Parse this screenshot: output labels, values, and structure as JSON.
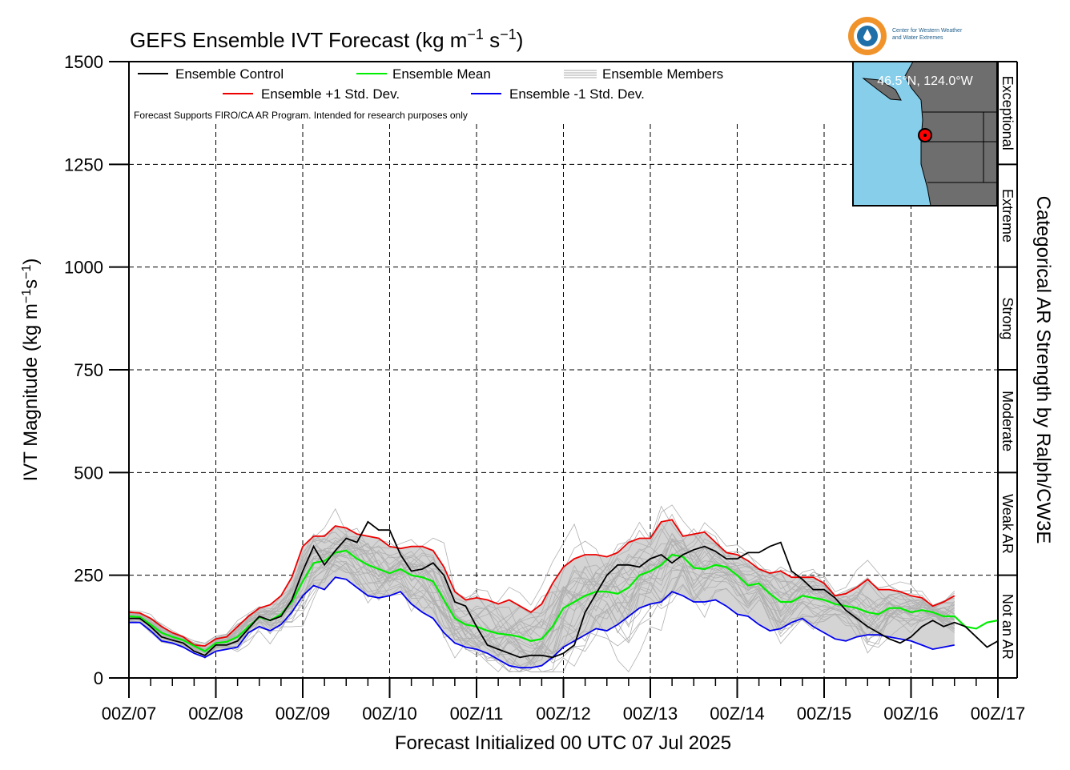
{
  "title": "GEFS Ensemble IVT Forecast (kg m",
  "title_sup1": "−1",
  "title_mid": " s",
  "title_sup2": "−1",
  "title_end": ")",
  "chart_data": {
    "type": "line",
    "title": "GEFS Ensemble IVT Forecast (kg m−1 s−1)",
    "xlabel": "Forecast Initialized 00 UTC 07 Jul 2025",
    "ylabel": "IVT Magnitude (kg m−1s−1)",
    "ylim": [
      0,
      1500
    ],
    "xlim": [
      0,
      10
    ],
    "y_ticks": [
      0,
      250,
      500,
      750,
      1000,
      1250,
      1500
    ],
    "x_ticks": [
      "00Z/07",
      "00Z/08",
      "00Z/09",
      "00Z/10",
      "00Z/11",
      "00Z/12",
      "00Z/13",
      "00Z/14",
      "00Z/15",
      "00Z/16",
      "00Z/17"
    ],
    "x_unit": "days since 00Z/07",
    "x_step": 0.125,
    "grid": true,
    "legend_position": "top-left",
    "series": [
      {
        "name": "Ensemble Control",
        "color": "#000000",
        "values": [
          145,
          145,
          125,
          100,
          92,
          85,
          65,
          55,
          80,
          80,
          90,
          120,
          150,
          140,
          150,
          190,
          260,
          320,
          275,
          310,
          340,
          330,
          380,
          360,
          360,
          300,
          260,
          265,
          280,
          250,
          185,
          175,
          125,
          80,
          70,
          60,
          50,
          55,
          55,
          50,
          60,
          80,
          160,
          205,
          250,
          275,
          275,
          270,
          290,
          300,
          280,
          300,
          312,
          320,
          308,
          290,
          290,
          305,
          305,
          320,
          330,
          260,
          240,
          215,
          215,
          195,
          165,
          145,
          125,
          110,
          95,
          85,
          100,
          125,
          140,
          125,
          135,
          125,
          100,
          75,
          90
        ]
      },
      {
        "name": "Ensemble Mean",
        "color": "#00ee00",
        "values": [
          150,
          148,
          130,
          110,
          100,
          92,
          78,
          65,
          85,
          88,
          100,
          125,
          148,
          140,
          155,
          185,
          235,
          280,
          285,
          305,
          310,
          290,
          275,
          265,
          255,
          265,
          250,
          245,
          235,
          190,
          145,
          130,
          125,
          115,
          108,
          105,
          100,
          90,
          95,
          125,
          170,
          185,
          200,
          210,
          210,
          205,
          220,
          250,
          260,
          275,
          300,
          295,
          268,
          265,
          275,
          270,
          250,
          225,
          230,
          205,
          185,
          185,
          200,
          195,
          190,
          180,
          175,
          170,
          160,
          155,
          170,
          170,
          160,
          165,
          160,
          150,
          150,
          125,
          120,
          135,
          140
        ]
      },
      {
        "name": "Ensemble +1 Std. Dev.",
        "color": "#ee0000",
        "values": [
          160,
          158,
          145,
          125,
          110,
          100,
          80,
          78,
          95,
          100,
          125,
          150,
          170,
          178,
          200,
          245,
          320,
          345,
          345,
          370,
          365,
          350,
          345,
          340,
          320,
          315,
          320,
          320,
          310,
          270,
          210,
          190,
          195,
          190,
          180,
          190,
          175,
          160,
          180,
          230,
          270,
          290,
          300,
          300,
          295,
          305,
          330,
          340,
          340,
          380,
          385,
          345,
          350,
          355,
          330,
          305,
          300,
          285,
          265,
          255,
          260,
          245,
          245,
          245,
          230,
          200,
          205,
          220,
          240,
          215,
          215,
          210,
          200,
          195,
          175,
          185,
          200
        ]
      },
      {
        "name": "Ensemble -1 Std. Dev.",
        "color": "#0000ee",
        "values": [
          135,
          135,
          115,
          90,
          85,
          75,
          60,
          50,
          65,
          70,
          75,
          110,
          125,
          115,
          130,
          160,
          200,
          225,
          215,
          245,
          240,
          220,
          200,
          195,
          200,
          210,
          180,
          160,
          145,
          110,
          85,
          75,
          70,
          60,
          45,
          30,
          25,
          25,
          30,
          50,
          75,
          90,
          105,
          120,
          115,
          130,
          150,
          170,
          180,
          185,
          210,
          200,
          185,
          185,
          190,
          175,
          155,
          150,
          130,
          115,
          120,
          135,
          145,
          125,
          110,
          95,
          90,
          100,
          105,
          105,
          100,
          95,
          90,
          80,
          70,
          75,
          80
        ]
      },
      {
        "name": "Ensemble Members",
        "color": "#aaaaaa",
        "values": []
      }
    ],
    "shaded_band": {
      "between": [
        "Ensemble -1 Std. Dev.",
        "Ensemble +1 Std. Dev."
      ],
      "color": "#d4d4d4"
    },
    "categories_right": [
      "Not an AR",
      "Weak AR",
      "Moderate",
      "Strong",
      "Extreme",
      "Exceptional"
    ],
    "category_axis_label": "Categorical AR Strength by Ralph/CW3E",
    "category_bounds": [
      0,
      250,
      500,
      750,
      1000,
      1250,
      1500
    ]
  },
  "legend": {
    "control": "Ensemble Control",
    "mean": "Ensemble Mean",
    "members": "Ensemble Members",
    "plus_sd": "Ensemble +1 Std. Dev.",
    "minus_sd": "Ensemble -1 Std. Dev."
  },
  "note": "Forecast Supports FIRO/CA AR Program. Intended for research purposes only",
  "inset_map": {
    "location_label": "46.5°N, 124.0°W",
    "land_color": "#6e6e6e",
    "ocean_color": "#87ceeb",
    "marker_color": "#ff0000"
  },
  "logo": {
    "line1": "Center for Western Weather",
    "line2": "and Water Extremes",
    "ring_color": "#f0932b",
    "inner_color": "#1f6fa8"
  },
  "colors": {
    "control": "#000000",
    "mean": "#00ee00",
    "plus_sd": "#ee0000",
    "minus_sd": "#0000ee",
    "members": "#aaaaaa",
    "band": "#d4d4d4"
  }
}
